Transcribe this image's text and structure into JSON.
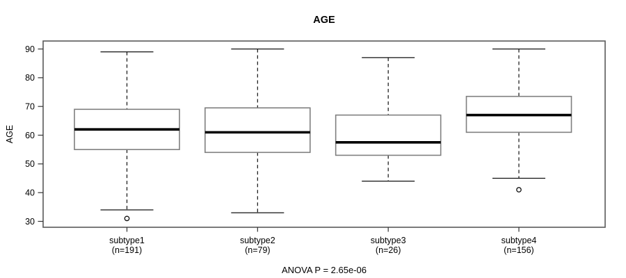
{
  "chart_data": {
    "type": "boxplot",
    "title": "AGE",
    "ylabel": "AGE",
    "footer": "ANOVA P = 2.65e-06",
    "y_axis": {
      "ticks": [
        30,
        40,
        50,
        60,
        70,
        80,
        90
      ],
      "range": [
        28,
        93
      ],
      "grid": false
    },
    "groups": [
      {
        "label": "subtype1",
        "n_label": "(n=191)",
        "whisker_low": 34,
        "q1": 55,
        "median": 62,
        "q3": 69,
        "whisker_high": 89,
        "outliers": [
          31
        ]
      },
      {
        "label": "subtype2",
        "n_label": "(n=79)",
        "whisker_low": 33,
        "q1": 54,
        "median": 61,
        "q3": 69.5,
        "whisker_high": 90,
        "outliers": []
      },
      {
        "label": "subtype3",
        "n_label": "(n=26)",
        "whisker_low": 44,
        "q1": 53,
        "median": 57.5,
        "q3": 67,
        "whisker_high": 87,
        "outliers": []
      },
      {
        "label": "subtype4",
        "n_label": "(n=156)",
        "whisker_low": 45,
        "q1": 61,
        "median": 67,
        "q3": 73.5,
        "whisker_high": 90,
        "outliers": [
          41
        ]
      }
    ],
    "colors": {
      "background": "#ffffff",
      "frame": "#595959",
      "box_border": "#7f7f7f",
      "box_fill": "#ffffff",
      "line": "#111111",
      "tick": "#333333",
      "text": "#000000"
    }
  }
}
